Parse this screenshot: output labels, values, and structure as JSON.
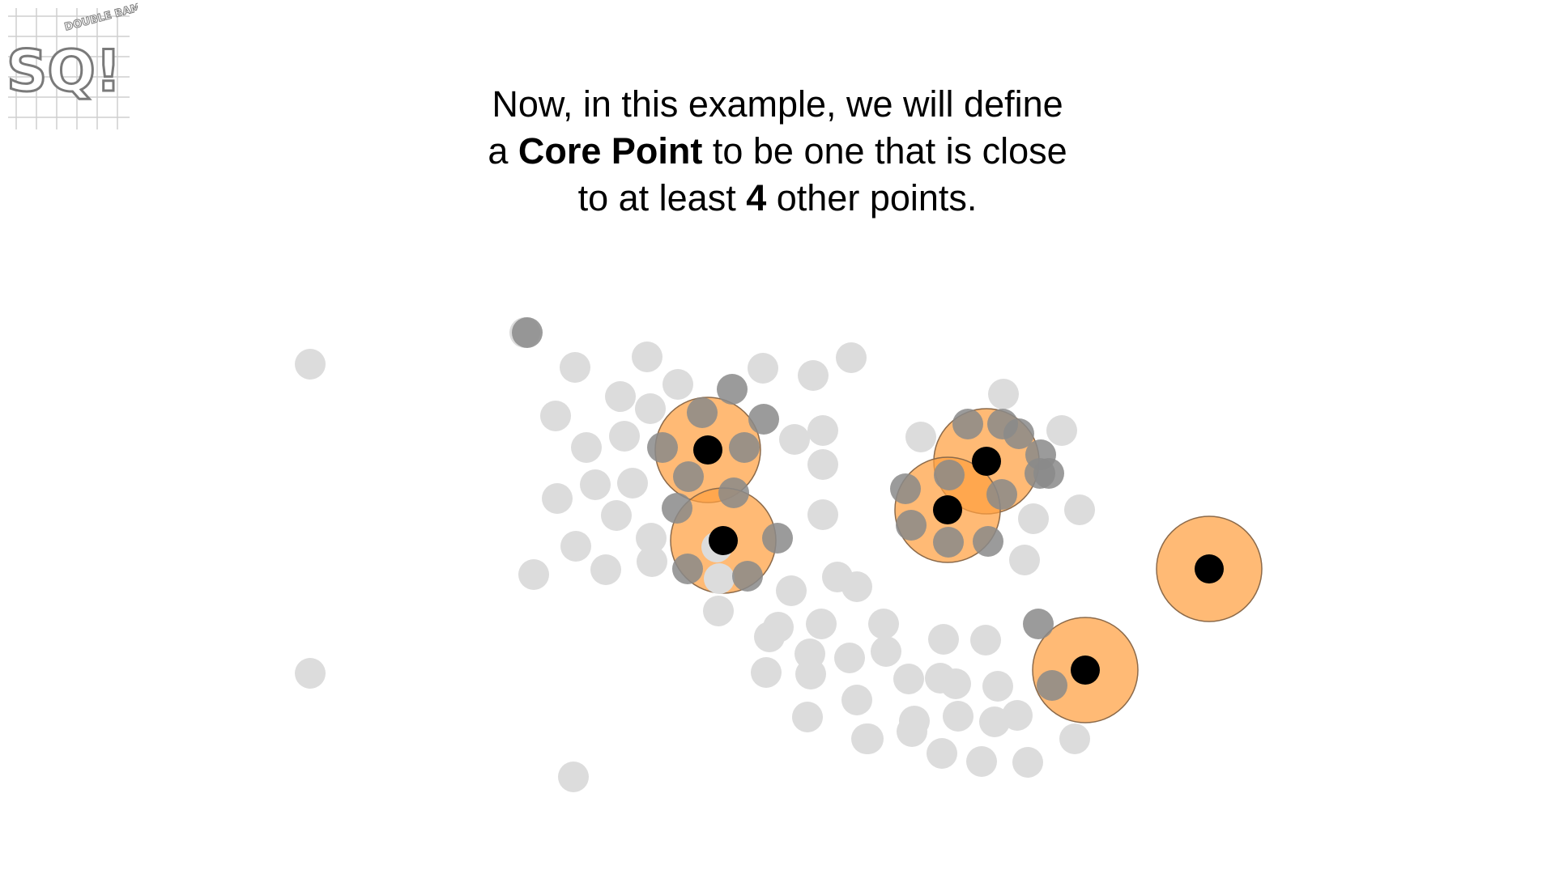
{
  "logo": {
    "letters": "SQ!",
    "small_text": "DOUBLE BAM!!"
  },
  "caption": {
    "line1": "Now, in this example, we will define",
    "line2_prefix": "a ",
    "line2_bold": "Core Point",
    "line2_suffix": " to be one that is close",
    "line3_prefix": "to at least ",
    "line3_bold": "4",
    "line3_suffix": " other points."
  },
  "colors": {
    "background": "#ffffff",
    "other_point": "#dcdcdc",
    "neighbor_point": "#8a8a8a",
    "core_point": "#000000",
    "radius_fill": "#ffa040",
    "radius_stroke": "#8c6a4a"
  },
  "scatter": {
    "other_points": [
      [
        383,
        450
      ],
      [
        648,
        411
      ],
      [
        710,
        454
      ],
      [
        799,
        441
      ],
      [
        837,
        475
      ],
      [
        942,
        455
      ],
      [
        1004,
        464
      ],
      [
        1051,
        442
      ],
      [
        686,
        514
      ],
      [
        766,
        490
      ],
      [
        803,
        505
      ],
      [
        981,
        543
      ],
      [
        1016,
        532
      ],
      [
        724,
        553
      ],
      [
        771,
        539
      ],
      [
        1016,
        574
      ],
      [
        688,
        616
      ],
      [
        735,
        599
      ],
      [
        781,
        597
      ],
      [
        761,
        637
      ],
      [
        804,
        665
      ],
      [
        1016,
        636
      ],
      [
        711,
        675
      ],
      [
        748,
        704
      ],
      [
        805,
        694
      ],
      [
        885,
        676
      ],
      [
        659,
        710
      ],
      [
        887,
        755
      ],
      [
        977,
        730
      ],
      [
        1034,
        713
      ],
      [
        888,
        715
      ],
      [
        1137,
        540
      ],
      [
        1239,
        487
      ],
      [
        1311,
        532
      ],
      [
        1333,
        630
      ],
      [
        1276,
        641
      ],
      [
        1265,
        692
      ],
      [
        950,
        787
      ],
      [
        1014,
        771
      ],
      [
        1091,
        771
      ],
      [
        1000,
        808
      ],
      [
        1049,
        813
      ],
      [
        1094,
        805
      ],
      [
        1165,
        790
      ],
      [
        1217,
        791
      ],
      [
        1232,
        848
      ],
      [
        946,
        831
      ],
      [
        1001,
        833
      ],
      [
        1122,
        839
      ],
      [
        1180,
        845
      ],
      [
        1058,
        865
      ],
      [
        1129,
        891
      ],
      [
        1183,
        885
      ],
      [
        997,
        886
      ],
      [
        1070,
        913
      ],
      [
        1126,
        904
      ],
      [
        1256,
        884
      ],
      [
        1212,
        941
      ],
      [
        1163,
        931
      ],
      [
        1269,
        942
      ],
      [
        1327,
        913
      ],
      [
        1072,
        913
      ],
      [
        383,
        832
      ],
      [
        708,
        960
      ],
      [
        1058,
        725
      ],
      [
        961,
        775
      ],
      [
        1161,
        838
      ],
      [
        1228,
        892
      ]
    ],
    "neighbor_points": [
      [
        651,
        411
      ],
      [
        904,
        481
      ],
      [
        867,
        510
      ],
      [
        943,
        518
      ],
      [
        818,
        553
      ],
      [
        919,
        553
      ],
      [
        850,
        589
      ],
      [
        906,
        609
      ],
      [
        836,
        628
      ],
      [
        960,
        665
      ],
      [
        849,
        703
      ],
      [
        923,
        712
      ],
      [
        1195,
        524
      ],
      [
        1258,
        536
      ],
      [
        1295,
        585
      ],
      [
        1118,
        604
      ],
      [
        1172,
        587
      ],
      [
        1237,
        611
      ],
      [
        1125,
        649
      ],
      [
        1171,
        670
      ],
      [
        1220,
        669
      ],
      [
        1285,
        562
      ],
      [
        1284,
        585
      ],
      [
        1238,
        524
      ],
      [
        1282,
        771
      ],
      [
        1299,
        847
      ]
    ],
    "core_points": [
      [
        874,
        556
      ],
      [
        893,
        668
      ],
      [
        1218,
        570
      ],
      [
        1170,
        630
      ],
      [
        1493,
        703
      ],
      [
        1340,
        828
      ]
    ],
    "radius": 65
  }
}
